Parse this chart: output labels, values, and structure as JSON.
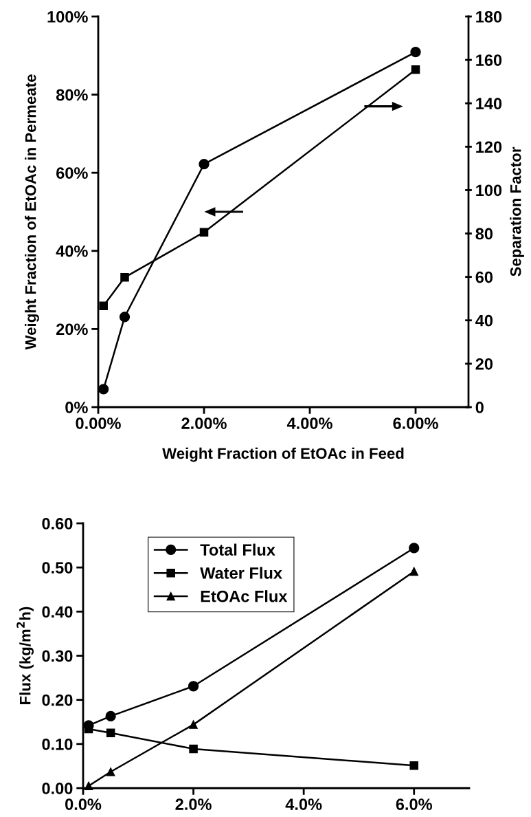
{
  "chart_data": [
    {
      "type": "line",
      "xlabel": "Weight Fraction of EtOAc in Feed",
      "ylabel": "Weight Fraction of EtOAc in Permeate",
      "y2label": "Separation Factor",
      "x": [
        0.1,
        0.5,
        2,
        6
      ],
      "series": [
        {
          "color": "#000000",
          "marker": "circle",
          "values": [
            4.6,
            23.1,
            62.2,
            90.9
          ]
        },
        {
          "color": "#000000",
          "marker": "square",
          "axis": "y2",
          "values": [
            46.7,
            59.8,
            80.6,
            155.5
          ]
        }
      ],
      "xlim": [
        0,
        7
      ],
      "xticks": [
        {
          "value": 0,
          "label": "0.00%"
        },
        {
          "value": 2,
          "label": "2.00%"
        },
        {
          "value": 4,
          "label": "4.00%"
        },
        {
          "value": 6,
          "label": "6.00%"
        }
      ],
      "ylim": [
        0,
        100
      ],
      "yticks": [
        {
          "value": 0,
          "label": "0%"
        },
        {
          "value": 20,
          "label": "20%"
        },
        {
          "value": 40,
          "label": "40%"
        },
        {
          "value": 60,
          "label": "60%"
        },
        {
          "value": 80,
          "label": "80%"
        },
        {
          "value": 100,
          "label": "100%"
        }
      ],
      "y2lim": [
        0,
        180
      ],
      "y2ticks": [
        0,
        20,
        40,
        60,
        80,
        100,
        120,
        140,
        160,
        180
      ],
      "grid": false,
      "legend": false,
      "line_style": "solid"
    },
    {
      "type": "line",
      "ylabel": "Flux (kg/m$^{2}$h)",
      "x": [
        0.1,
        0.5,
        2,
        6
      ],
      "series": [
        {
          "name": "Total Flux",
          "color": "#000000",
          "marker": "circle",
          "values": [
            0.142,
            0.163,
            0.231,
            0.544
          ]
        },
        {
          "name": "Water Flux",
          "color": "#000000",
          "marker": "square",
          "values": [
            0.134,
            0.125,
            0.089,
            0.051
          ]
        },
        {
          "name": "EtOAc Flux",
          "color": "#000000",
          "marker": "triangle",
          "values": [
            0.005,
            0.037,
            0.144,
            0.491
          ]
        }
      ],
      "xlim": [
        0,
        7
      ],
      "xticks": [
        {
          "value": 0,
          "label": "0.0%"
        },
        {
          "value": 2,
          "label": "2.0%"
        },
        {
          "value": 4,
          "label": "4.0%"
        },
        {
          "value": 6,
          "label": "6.0%"
        }
      ],
      "ylim": [
        0,
        0.6
      ],
      "yticks": [
        {
          "value": 0,
          "label": "0.00"
        },
        {
          "value": 0.1,
          "label": "0.10"
        },
        {
          "value": 0.2,
          "label": "0.20"
        },
        {
          "value": 0.3,
          "label": "0.30"
        },
        {
          "value": 0.4,
          "label": "0.40"
        },
        {
          "value": 0.5,
          "label": "0.50"
        },
        {
          "value": 0.6,
          "label": "0.60"
        }
      ],
      "grid": false,
      "legend": "top left",
      "line_style": "solid"
    }
  ]
}
